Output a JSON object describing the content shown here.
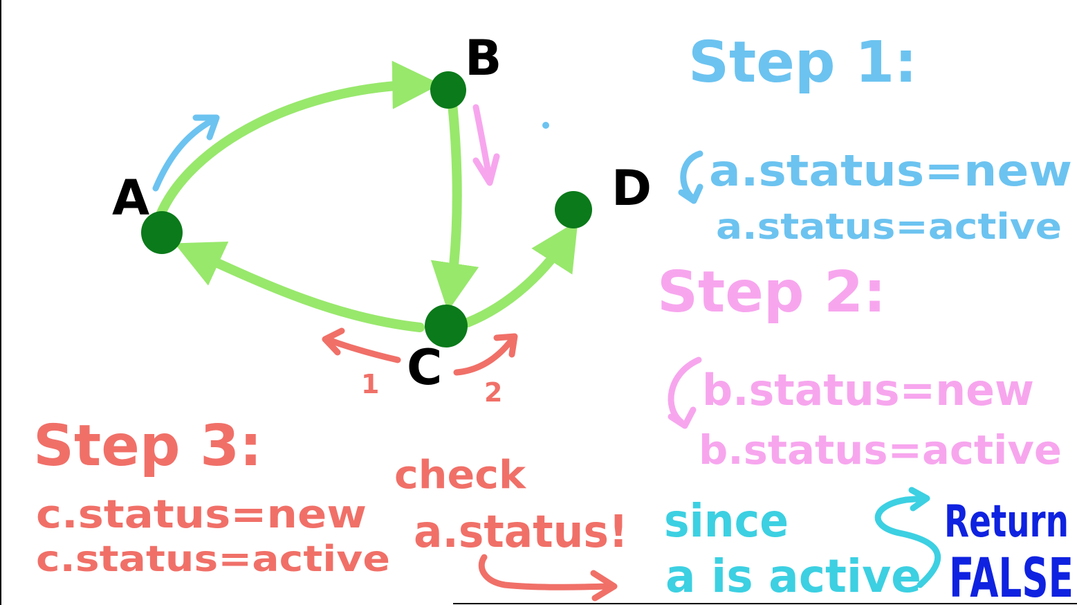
{
  "colors": {
    "edge": "#98e86c",
    "node": "#0a7a1a",
    "node_label": "#000000",
    "step1": "#6cc3f0",
    "step2": "#f7a6ee",
    "step3": "#f07068",
    "since": "#3cd0e2",
    "return": "#0f22e0"
  },
  "graph": {
    "nodes": [
      {
        "id": "A",
        "label": "A"
      },
      {
        "id": "B",
        "label": "B"
      },
      {
        "id": "C",
        "label": "C"
      },
      {
        "id": "D",
        "label": "D"
      }
    ],
    "edges": [
      {
        "from": "A",
        "to": "B"
      },
      {
        "from": "B",
        "to": "C"
      },
      {
        "from": "C",
        "to": "A"
      },
      {
        "from": "C",
        "to": "D"
      }
    ],
    "traversal_marks": {
      "c_order_first": "1",
      "c_order_second": "2"
    }
  },
  "step1": {
    "title": "Step 1:",
    "line1": "a.status=new",
    "line2": "a.status=active"
  },
  "step2": {
    "title": "Step 2:",
    "line1": "b.status=new",
    "line2": "b.status=active"
  },
  "step3": {
    "title": "Step 3:",
    "line1": "c.status=new",
    "line2": "c.status=active"
  },
  "check": {
    "line1": "check",
    "line2": "a.status!"
  },
  "since": {
    "line1": "since",
    "line2": "a is active"
  },
  "result": {
    "line1": "Return",
    "line2": "FALSE"
  }
}
